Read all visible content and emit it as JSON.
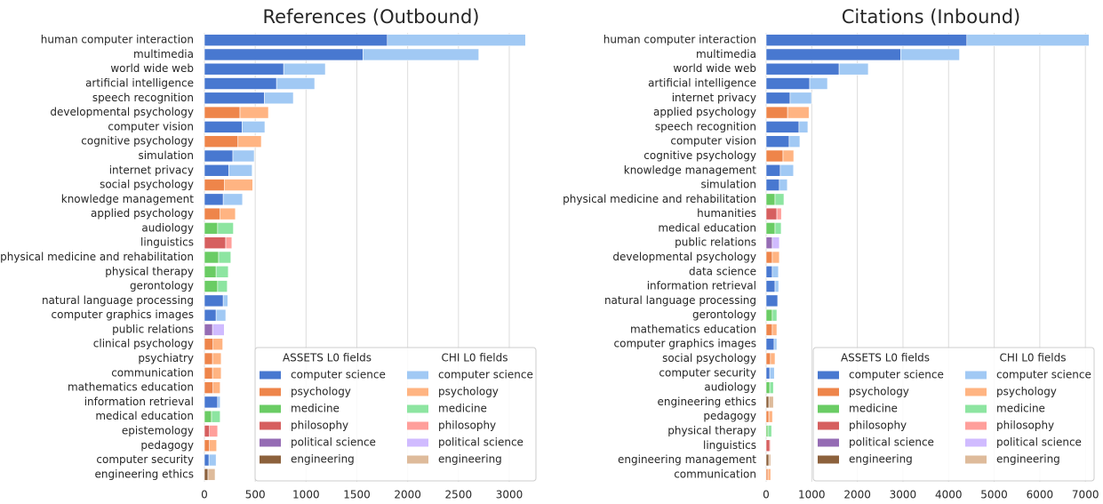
{
  "chart_data": [
    {
      "type": "bar",
      "orientation": "horizontal",
      "title": "References (Outbound)",
      "categories": [
        "human computer interaction",
        "multimedia",
        "world wide web",
        "artificial intelligence",
        "speech recognition",
        "developmental psychology",
        "computer vision",
        "cognitive psychology",
        "simulation",
        "internet privacy",
        "social psychology",
        "knowledge management",
        "applied psychology",
        "audiology",
        "linguistics",
        "physical medicine and rehabilitation",
        "physical therapy",
        "gerontology",
        "natural language processing",
        "computer graphics images",
        "public relations",
        "clinical psychology",
        "psychiatry",
        "communication",
        "mathematics education",
        "information retrieval",
        "medical education",
        "epistemology",
        "pedagogy",
        "computer security",
        "engineering ethics"
      ],
      "series": [
        {
          "name": "ASSETS L0 fields",
          "values": [
            1800,
            1560,
            780,
            710,
            590,
            350,
            370,
            330,
            280,
            240,
            195,
            185,
            155,
            130,
            210,
            140,
            115,
            130,
            185,
            115,
            80,
            85,
            80,
            80,
            85,
            130,
            70,
            50,
            50,
            45,
            35
          ],
          "colors": [
            "#4878d0",
            "#4878d0",
            "#4878d0",
            "#4878d0",
            "#4878d0",
            "#ee854a",
            "#4878d0",
            "#ee854a",
            "#4878d0",
            "#4878d0",
            "#ee854a",
            "#4878d0",
            "#ee854a",
            "#6acc64",
            "#d65f5f",
            "#6acc64",
            "#6acc64",
            "#6acc64",
            "#4878d0",
            "#4878d0",
            "#956cb4",
            "#ee854a",
            "#ee854a",
            "#ee854a",
            "#ee854a",
            "#4878d0",
            "#6acc64",
            "#d65f5f",
            "#ee854a",
            "#4878d0",
            "#8c613c"
          ]
        },
        {
          "name": "CHI L0 fields",
          "values": [
            1360,
            1140,
            410,
            375,
            285,
            280,
            225,
            230,
            210,
            230,
            280,
            190,
            150,
            155,
            60,
            120,
            120,
            95,
            45,
            95,
            115,
            95,
            85,
            85,
            70,
            25,
            85,
            80,
            70,
            70,
            70
          ],
          "colors": [
            "#a1c9f4",
            "#a1c9f4",
            "#a1c9f4",
            "#a1c9f4",
            "#a1c9f4",
            "#ffb482",
            "#a1c9f4",
            "#ffb482",
            "#a1c9f4",
            "#a1c9f4",
            "#ffb482",
            "#a1c9f4",
            "#ffb482",
            "#8de5a1",
            "#ff9f9b",
            "#8de5a1",
            "#8de5a1",
            "#8de5a1",
            "#a1c9f4",
            "#a1c9f4",
            "#d0bbff",
            "#ffb482",
            "#ffb482",
            "#ffb482",
            "#ffb482",
            "#a1c9f4",
            "#8de5a1",
            "#ff9f9b",
            "#ffb482",
            "#a1c9f4",
            "#debb9b"
          ]
        }
      ],
      "xlim": [
        0,
        3280
      ],
      "xticks": [
        0,
        500,
        1000,
        1500,
        2000,
        2500,
        3000
      ],
      "grid": true,
      "legend": {
        "loc": "lower right",
        "labels": [
          "computer science",
          "psychology",
          "medicine",
          "philosophy",
          "political science",
          "engineering"
        ],
        "colors": [
          [
            "#4878d0",
            "#ee854a",
            "#6acc64",
            "#d65f5f",
            "#956cb4",
            "#8c613c"
          ],
          [
            "#a1c9f4",
            "#ffb482",
            "#8de5a1",
            "#ff9f9b",
            "#d0bbff",
            "#debb9b"
          ]
        ]
      }
    },
    {
      "type": "bar",
      "orientation": "horizontal",
      "title": "Citations (Inbound)",
      "categories": [
        "human computer interaction",
        "multimedia",
        "world wide web",
        "artificial intelligence",
        "internet privacy",
        "applied psychology",
        "speech recognition",
        "computer vision",
        "cognitive psychology",
        "knowledge management",
        "simulation",
        "physical medicine and rehabilitation",
        "humanities",
        "medical education",
        "public relations",
        "developmental psychology",
        "data science",
        "information retrieval",
        "natural language processing",
        "gerontology",
        "mathematics education",
        "computer graphics images",
        "social psychology",
        "computer security",
        "audiology",
        "engineering ethics",
        "pedagogy",
        "physical therapy",
        "linguistics",
        "engineering management",
        "communication"
      ],
      "series": [
        {
          "name": "ASSETS L0 fields",
          "values": [
            4400,
            2950,
            1600,
            955,
            525,
            470,
            720,
            505,
            370,
            310,
            290,
            195,
            235,
            195,
            135,
            135,
            135,
            195,
            255,
            135,
            135,
            175,
            95,
            80,
            80,
            60,
            60,
            40,
            80,
            60,
            40
          ],
          "colors": [
            "#4878d0",
            "#4878d0",
            "#4878d0",
            "#4878d0",
            "#4878d0",
            "#ee854a",
            "#4878d0",
            "#4878d0",
            "#ee854a",
            "#4878d0",
            "#4878d0",
            "#6acc64",
            "#d65f5f",
            "#6acc64",
            "#956cb4",
            "#ee854a",
            "#4878d0",
            "#4878d0",
            "#4878d0",
            "#6acc64",
            "#ee854a",
            "#4878d0",
            "#ee854a",
            "#4878d0",
            "#6acc64",
            "#8c613c",
            "#ee854a",
            "#6acc64",
            "#d65f5f",
            "#8c613c",
            "#ee854a"
          ]
        },
        {
          "name": "CHI L0 fields",
          "values": [
            2680,
            1290,
            640,
            390,
            470,
            470,
            195,
            235,
            235,
            290,
            175,
            195,
            100,
            135,
            155,
            155,
            135,
            80,
            10,
            100,
            100,
            60,
            100,
            100,
            80,
            100,
            80,
            80,
            20,
            40,
            60
          ],
          "colors": [
            "#a1c9f4",
            "#a1c9f4",
            "#a1c9f4",
            "#a1c9f4",
            "#a1c9f4",
            "#ffb482",
            "#a1c9f4",
            "#a1c9f4",
            "#ffb482",
            "#a1c9f4",
            "#a1c9f4",
            "#8de5a1",
            "#ff9f9b",
            "#8de5a1",
            "#d0bbff",
            "#ffb482",
            "#a1c9f4",
            "#a1c9f4",
            "#a1c9f4",
            "#8de5a1",
            "#ffb482",
            "#a1c9f4",
            "#ffb482",
            "#a1c9f4",
            "#8de5a1",
            "#debb9b",
            "#ffb482",
            "#8de5a1",
            "#ff9f9b",
            "#debb9b",
            "#ffb482"
          ]
        }
      ],
      "xlim": [
        0,
        7230
      ],
      "xticks": [
        0,
        1000,
        2000,
        3000,
        4000,
        5000,
        6000,
        7000
      ],
      "grid": true,
      "legend": {
        "loc": "lower right",
        "labels": [
          "computer science",
          "psychology",
          "medicine",
          "philosophy",
          "political science",
          "engineering"
        ],
        "colors": [
          [
            "#4878d0",
            "#ee854a",
            "#6acc64",
            "#d65f5f",
            "#956cb4",
            "#8c613c"
          ],
          [
            "#a1c9f4",
            "#ffb482",
            "#8de5a1",
            "#ff9f9b",
            "#d0bbff",
            "#debb9b"
          ]
        ]
      }
    }
  ]
}
